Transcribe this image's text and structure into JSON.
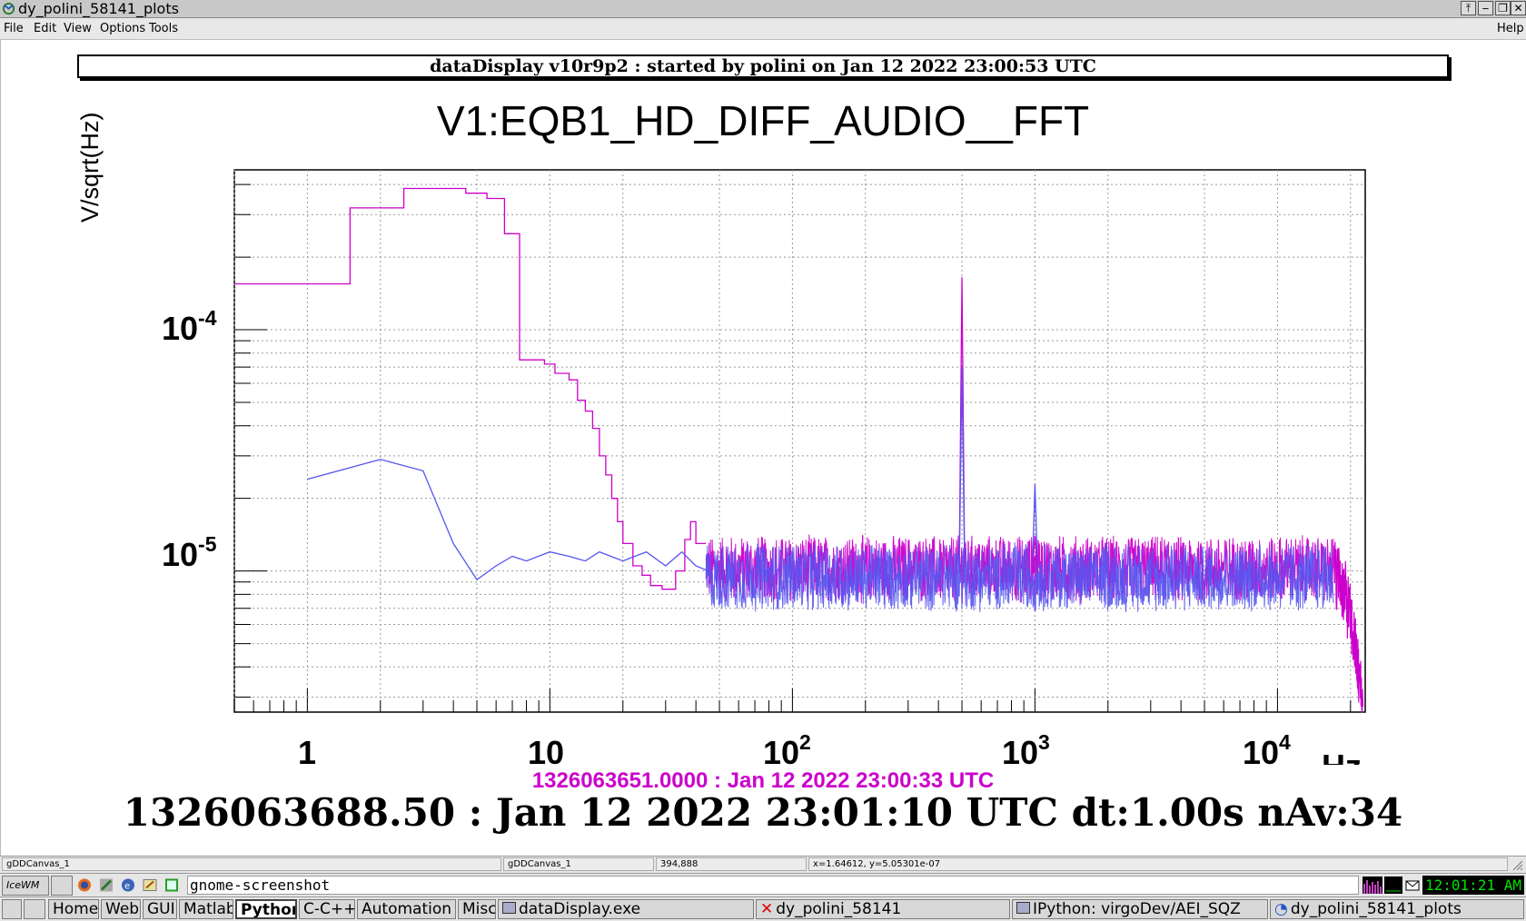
{
  "window": {
    "title": "dy_polini_58141_plots",
    "buttons": [
      "⤒",
      "‒",
      "❐",
      "✕"
    ]
  },
  "menubar": {
    "items": [
      "File",
      "Edit",
      "View",
      "Options",
      "Tools"
    ],
    "help": "Help"
  },
  "banner": "dataDisplay v10r9p2 : started by polini on Jan 12 2022 23:00:53 UTC",
  "chart_data": {
    "type": "line",
    "title": "V1:EQB1_HD_DIFF_AUDIO__FFT",
    "ylabel": "V/sqrt(Hz)",
    "xlabel": "Hz",
    "xscale": "log",
    "yscale": "log",
    "xlim": [
      0.5,
      23000
    ],
    "ylim": [
      2.6e-06,
      0.00046
    ],
    "grid": true,
    "y_ticks": [
      {
        "base": "10",
        "exp": "-4"
      },
      {
        "base": "10",
        "exp": "-5"
      }
    ],
    "x_ticks": [
      {
        "base": "1",
        "exp": ""
      },
      {
        "base": "10",
        "exp": ""
      },
      {
        "base": "10",
        "exp": "2"
      },
      {
        "base": "10",
        "exp": "3"
      },
      {
        "base": "10",
        "exp": "4"
      }
    ],
    "series": [
      {
        "color": "#cc00cc",
        "style": "step",
        "points": [
          [
            0.5,
            0.000155
          ],
          [
            1.0,
            0.000155
          ],
          [
            1.5,
            0.000155
          ],
          [
            1.5,
            0.00032
          ],
          [
            2.0,
            0.00032
          ],
          [
            2.5,
            0.00032
          ],
          [
            2.5,
            0.000385
          ],
          [
            3.0,
            0.000385
          ],
          [
            4.0,
            0.000385
          ],
          [
            4.5,
            0.000385
          ],
          [
            4.5,
            0.000368
          ],
          [
            5.5,
            0.000368
          ],
          [
            5.5,
            0.00035
          ],
          [
            6.5,
            0.00035
          ],
          [
            6.5,
            0.00025
          ],
          [
            7.5,
            0.00025
          ],
          [
            7.5,
            7.5e-05
          ],
          [
            9.5,
            7.5e-05
          ],
          [
            9.5,
            7.2e-05
          ],
          [
            10.5,
            7.2e-05
          ],
          [
            10.5,
            6.6e-05
          ],
          [
            12,
            6.6e-05
          ],
          [
            12,
            6.2e-05
          ],
          [
            13,
            6.2e-05
          ],
          [
            13,
            5.1e-05
          ],
          [
            14,
            5.1e-05
          ],
          [
            14,
            4.6e-05
          ],
          [
            15,
            4.6e-05
          ],
          [
            15,
            3.9e-05
          ],
          [
            16,
            3.9e-05
          ],
          [
            16,
            3e-05
          ],
          [
            17,
            3e-05
          ],
          [
            17,
            2.5e-05
          ],
          [
            18,
            2.5e-05
          ],
          [
            18,
            2e-05
          ],
          [
            19,
            2e-05
          ],
          [
            19,
            1.6e-05
          ],
          [
            20,
            1.6e-05
          ],
          [
            20,
            1.3e-05
          ],
          [
            22,
            1.3e-05
          ],
          [
            22,
            1.05e-05
          ],
          [
            24,
            1.05e-05
          ],
          [
            24,
            9.6e-06
          ],
          [
            26,
            9.6e-06
          ],
          [
            26,
            8.7e-06
          ],
          [
            29,
            8.7e-06
          ],
          [
            29,
            8.4e-06
          ],
          [
            33,
            8.4e-06
          ],
          [
            33,
            1e-05
          ],
          [
            36,
            1e-05
          ],
          [
            36,
            1.35e-05
          ],
          [
            38,
            1.35e-05
          ],
          [
            38,
            1.6e-05
          ],
          [
            40,
            1.6e-05
          ],
          [
            40,
            1.3e-05
          ],
          [
            44,
            1.3e-05
          ]
        ]
      },
      {
        "color": "#5555ee",
        "style": "line",
        "points": [
          [
            1,
            2.4e-05
          ],
          [
            2,
            2.9e-05
          ],
          [
            3,
            2.6e-05
          ],
          [
            4,
            1.3e-05
          ],
          [
            5,
            9.2e-06
          ],
          [
            6,
            1.05e-05
          ],
          [
            7,
            1.15e-05
          ],
          [
            8,
            1.1e-05
          ],
          [
            10,
            1.2e-05
          ],
          [
            12,
            1.15e-05
          ],
          [
            14,
            1.1e-05
          ],
          [
            16,
            1.2e-05
          ],
          [
            20,
            1.1e-05
          ],
          [
            25,
            1.2e-05
          ],
          [
            30,
            1.05e-05
          ],
          [
            35,
            1.2e-05
          ],
          [
            40,
            1.05e-05
          ],
          [
            45,
            1e-05
          ]
        ]
      }
    ],
    "noise_band": {
      "x_range": [
        44,
        17000
      ],
      "y_center": 9.8e-06,
      "y_spread": 1.35,
      "colors": [
        "#cc00cc",
        "#5555ee"
      ]
    },
    "peaks": [
      {
        "x": 500,
        "y": 0.000165,
        "color": "#cc00cc"
      },
      {
        "x": 500,
        "y": 7e-05,
        "color": "#5555ee"
      },
      {
        "x": 1000,
        "y": 2.3e-05,
        "color": "#5555ee"
      },
      {
        "x": 1000,
        "y": 1.4e-05,
        "color": "#cc00cc"
      }
    ],
    "rolloff": {
      "x_start": 17000,
      "x_end": 22500,
      "y_start": 9.8e-06,
      "y_end": 2.6e-06
    }
  },
  "times": {
    "reference": "1326063651.0000 : Jan 12 2022 23:00:33 UTC",
    "current": "1326063688.50 : Jan 12 2022 23:01:10 UTC dt:1.00s nAv:34"
  },
  "statusbar": {
    "c1": "gDDCanvas_1",
    "c2": "gDDCanvas_1",
    "c3": "394,888",
    "c4": "x=1.64612, y=5.05301e-07"
  },
  "taskbar": {
    "logo": "IceWM",
    "command": "gnome-screenshot",
    "clock": "12:01:21 AM",
    "groups": [
      "Home",
      "Web",
      "GUI",
      "Matlab",
      "Python",
      "C-C++",
      "Automation",
      "Misc"
    ],
    "active_group": "Python",
    "tasks": [
      "dataDisplay.exe",
      "dy_polini_58141",
      "IPython: virgoDev/AEI_SQZ",
      "dy_polini_58141_plots"
    ]
  }
}
